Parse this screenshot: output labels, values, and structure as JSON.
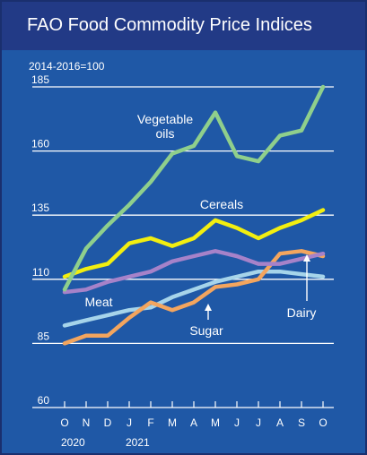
{
  "header": {
    "title": "FAO Food Commodity Price Indices"
  },
  "colors": {
    "title_bar": "#223a86",
    "panel": "#1f58a6",
    "gridline": "#ffffff",
    "text": "#ffffff"
  },
  "chart_data": {
    "type": "line",
    "title": "FAO Food Commodity Price Indices",
    "subtitle": "",
    "xlabel": "",
    "ylabel": "2014-2016=100",
    "ylim": [
      60,
      185
    ],
    "yticks": [
      60,
      85,
      110,
      135,
      160,
      185
    ],
    "grid": true,
    "legend": "none (series labelled directly on the chart)",
    "categories": [
      "O",
      "N",
      "D",
      "J",
      "F",
      "M",
      "A",
      "M",
      "J",
      "J",
      "A",
      "S",
      "O"
    ],
    "year_labels": [
      "2020",
      "2021"
    ],
    "series": [
      {
        "name": "Vegetable oils",
        "label_lines": [
          "Vegetable",
          "oils"
        ],
        "color": "#8fcf8c",
        "values": [
          106,
          122,
          131,
          139,
          148,
          159,
          162,
          175,
          158,
          156,
          166,
          168,
          185
        ]
      },
      {
        "name": "Cereals",
        "label_lines": [
          "Cereals"
        ],
        "color": "#f2ee10",
        "values": [
          111,
          114,
          116,
          124,
          126,
          123,
          126,
          133,
          130,
          126,
          130,
          133,
          137
        ]
      },
      {
        "name": "Meat",
        "label_lines": [
          "Meat"
        ],
        "color": "#a682c9",
        "values": [
          105,
          106,
          109,
          111,
          113,
          117,
          119,
          121,
          119,
          116,
          116,
          118,
          120
        ]
      },
      {
        "name": "Sugar",
        "label_lines": [
          "Sugar"
        ],
        "color": "#a6d4ea",
        "values": [
          92,
          94,
          96,
          98,
          99,
          103,
          106,
          109,
          111,
          113,
          113,
          112,
          111
        ]
      },
      {
        "name": "Dairy",
        "label_lines": [
          "Dairy"
        ],
        "color": "#f3a55e",
        "values": [
          85,
          88,
          88,
          95,
          101,
          98,
          101,
          107,
          108,
          110,
          120,
          121,
          119
        ]
      }
    ]
  }
}
